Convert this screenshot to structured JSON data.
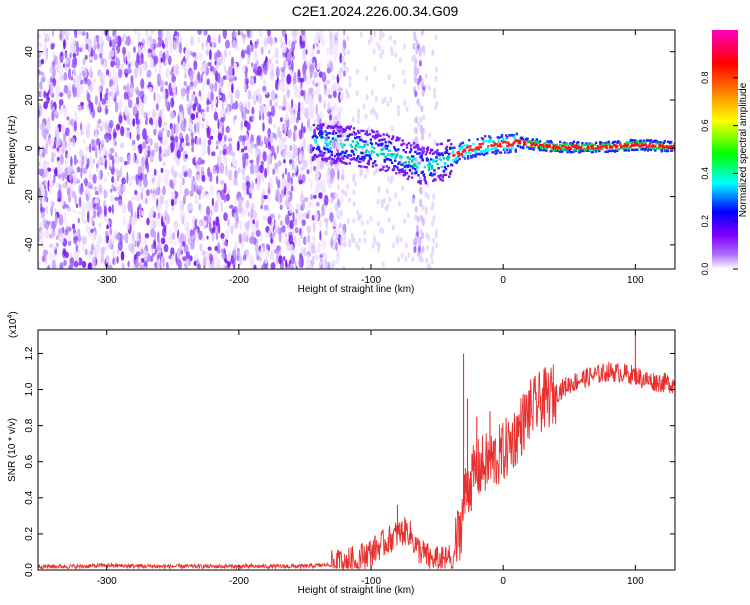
{
  "page": {
    "title": "C2E1.2024.226.00.34.G09"
  },
  "chart_data": [
    {
      "type": "heatmap",
      "title": "C2E1.2024.226.00.34.G09",
      "xlabel": "Height of straight line (km)",
      "ylabel": "Frequency (Hz)",
      "xlim": [
        -352,
        130
      ],
      "ylim": [
        -50,
        49
      ],
      "x_ticks": [
        -300,
        -200,
        -100,
        0,
        100
      ],
      "x_tick_labels": [
        "-300",
        "-200",
        "-100",
        "0",
        "100"
      ],
      "y_ticks": [
        -40,
        -20,
        0,
        20,
        40
      ],
      "y_tick_labels": [
        "-40",
        "-20",
        "0",
        "20",
        "40"
      ],
      "colorbar": {
        "label": "Normalized spectral amplitude",
        "range": [
          0,
          1
        ],
        "ticks": [
          0.0,
          0.2,
          0.4,
          0.6,
          0.8
        ],
        "tick_labels": [
          "0.0",
          "0.2",
          "0.4",
          "0.6",
          "0.8"
        ],
        "colormap": [
          "#ffffff",
          "#8000ff",
          "#0000ff",
          "#00ffff",
          "#00ff00",
          "#ffff00",
          "#ff8000",
          "#ff0000",
          "#ff00c0"
        ]
      },
      "ridge": {
        "description_free_points_x": [
          -140,
          -120,
          -100,
          -80,
          -60,
          -45,
          -30,
          -10,
          10,
          40,
          80,
          100,
          130
        ],
        "description_free_points_y": [
          3,
          2,
          0,
          -3,
          -7,
          -5,
          0,
          2,
          3,
          1,
          1,
          2,
          1
        ]
      },
      "noise_region_x": [
        -352,
        -130
      ]
    },
    {
      "type": "line",
      "xlabel": "Height of straight line (km)",
      "ylabel": "SNR (10 * v/v)",
      "y_scale_label": "(x10",
      "y_scale_exponent": "4",
      "y_scale_suffix": ")",
      "xlim": [
        -352,
        130
      ],
      "ylim": [
        0,
        1.33
      ],
      "x_ticks": [
        -300,
        -200,
        -100,
        0,
        100
      ],
      "x_tick_labels": [
        "-300",
        "-200",
        "-100",
        "0",
        "100"
      ],
      "y_ticks": [
        0.0,
        0.2,
        0.4,
        0.6,
        0.8,
        1.0,
        1.2
      ],
      "y_tick_labels": [
        "0.0",
        "0.2",
        "0.4",
        "0.6",
        "0.8",
        "1.0",
        "1.2"
      ],
      "series": [
        {
          "name": "SNR",
          "color": "#e8312f",
          "x": [
            -352,
            -320,
            -300,
            -260,
            -220,
            -180,
            -150,
            -130,
            -115,
            -100,
            -90,
            -80,
            -72,
            -65,
            -55,
            -45,
            -38,
            -32,
            -28,
            -24,
            -20,
            -15,
            -10,
            -5,
            0,
            5,
            10,
            15,
            20,
            30,
            40,
            50,
            60,
            70,
            80,
            90,
            100,
            105,
            110,
            120,
            130
          ],
          "values": [
            0.02,
            0.02,
            0.025,
            0.02,
            0.02,
            0.02,
            0.02,
            0.03,
            0.05,
            0.1,
            0.15,
            0.2,
            0.22,
            0.12,
            0.06,
            0.05,
            0.08,
            0.25,
            0.45,
            0.5,
            0.55,
            0.58,
            0.6,
            0.62,
            0.65,
            0.7,
            0.75,
            0.82,
            0.88,
            0.94,
            0.98,
            1.03,
            1.06,
            1.08,
            1.1,
            1.09,
            1.08,
            1.06,
            1.05,
            1.04,
            1.03
          ],
          "spikes": [
            {
              "x": -30,
              "value": 1.2
            },
            {
              "x": -27,
              "value": 0.95
            },
            {
              "x": -20,
              "value": 0.85
            },
            {
              "x": -10,
              "value": 0.88
            },
            {
              "x": 10,
              "value": 0.75
            },
            {
              "x": 100,
              "value": 1.31
            },
            {
              "x": -80,
              "value": 0.36
            }
          ]
        }
      ]
    }
  ]
}
